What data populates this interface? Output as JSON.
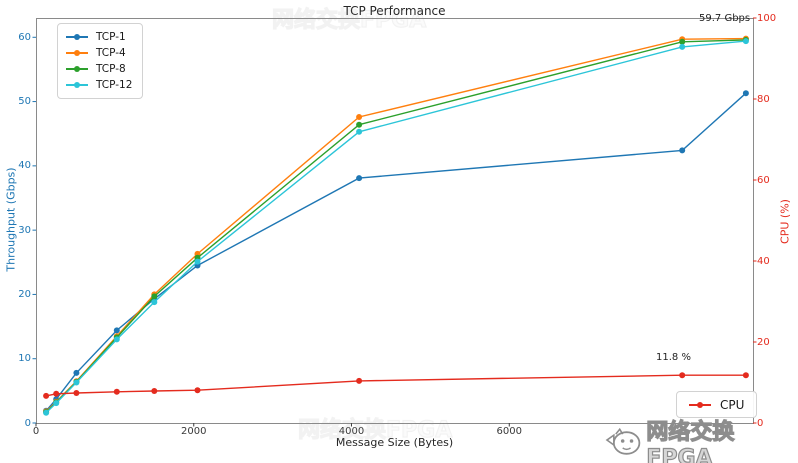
{
  "title": "TCP Performance",
  "axes": {
    "x": {
      "label": "Message Size (Bytes)",
      "ticks": [
        0,
        2000,
        4000,
        6000
      ],
      "color": "#3a3a3a"
    },
    "y_left": {
      "label": "Throughput (Gbps)",
      "ticks": [
        0,
        10,
        20,
        30,
        40,
        50,
        60
      ],
      "color": "#1f77b4"
    },
    "y_right": {
      "label": "CPU (%)",
      "ticks": [
        0,
        20,
        40,
        60,
        80,
        100
      ],
      "color": "#e42b1e"
    }
  },
  "chart_data": {
    "type": "line",
    "title": "TCP Performance",
    "xlabel": "Message Size (Bytes)",
    "ylabel_left": "Throughput (Gbps)",
    "ylabel_right": "CPU (%)",
    "x": [
      128,
      256,
      512,
      1024,
      1500,
      2048,
      4096,
      8192,
      9000
    ],
    "series": [
      {
        "name": "TCP-1",
        "axis": "left",
        "color": "#1f77b4",
        "marker": "circle",
        "values": [
          1.9,
          3.7,
          7.8,
          14.4,
          19.3,
          24.5,
          38.1,
          42.4,
          51.3
        ]
      },
      {
        "name": "TCP-4",
        "axis": "left",
        "color": "#ff7f0e",
        "marker": "circle",
        "values": [
          1.8,
          3.3,
          6.5,
          13.5,
          20.0,
          26.3,
          47.6,
          59.7,
          59.8
        ]
      },
      {
        "name": "TCP-8",
        "axis": "left",
        "color": "#2ca02c",
        "marker": "circle",
        "values": [
          1.7,
          3.2,
          6.4,
          13.3,
          19.7,
          25.7,
          46.4,
          59.3,
          59.6
        ]
      },
      {
        "name": "TCP-12",
        "axis": "left",
        "color": "#2cc5d8",
        "marker": "circle",
        "values": [
          1.6,
          3.1,
          6.3,
          13.0,
          18.8,
          25.1,
          45.3,
          58.5,
          59.4
        ]
      },
      {
        "name": "CPU",
        "axis": "right",
        "color": "#e42b1e",
        "marker": "circle",
        "values": [
          6.7,
          7.2,
          7.4,
          7.7,
          7.9,
          8.1,
          10.4,
          11.8,
          11.8
        ]
      }
    ],
    "xlim": [
      0,
      9090
    ],
    "ylim_left": [
      0,
      63
    ],
    "ylim_right": [
      0,
      100
    ],
    "grid": false,
    "legends": [
      {
        "position": "upper-left",
        "entries": [
          "TCP-1",
          "TCP-4",
          "TCP-8",
          "TCP-12"
        ]
      },
      {
        "position": "lower-right",
        "entries": [
          "CPU"
        ]
      }
    ],
    "annotations": [
      {
        "text": "59.7 Gbps",
        "series": "TCP-4",
        "x": 8192
      },
      {
        "text": "11.8 %",
        "series": "CPU",
        "x": 8192
      }
    ]
  },
  "watermark": {
    "text": "网络交换FPGA",
    "icon": "mascot-logo-icon"
  }
}
